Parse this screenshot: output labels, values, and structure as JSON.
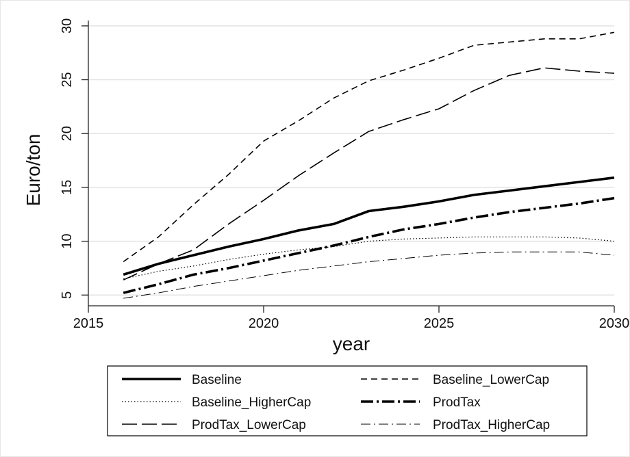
{
  "chart_data": {
    "type": "line",
    "xlabel": "year",
    "ylabel": "Euro/ton",
    "xlim": [
      2015,
      2030
    ],
    "ylim": [
      4,
      30.5
    ],
    "xticks": [
      2015,
      2020,
      2025,
      2030
    ],
    "yticks": [
      5,
      10,
      15,
      20,
      25,
      30
    ],
    "grid": "horizontal",
    "legend_position": "bottom",
    "x": [
      2016,
      2017,
      2018,
      2019,
      2020,
      2021,
      2022,
      2023,
      2024,
      2025,
      2026,
      2027,
      2028,
      2029,
      2030
    ],
    "series": [
      {
        "name": "Baseline",
        "style": "solid-thick",
        "values": [
          6.9,
          7.9,
          8.7,
          9.5,
          10.2,
          11.0,
          11.6,
          12.8,
          13.2,
          13.7,
          14.3,
          14.7,
          15.1,
          15.5,
          15.9
        ]
      },
      {
        "name": "Baseline_LowerCap",
        "style": "dash",
        "values": [
          8.1,
          10.4,
          13.4,
          16.2,
          19.3,
          21.2,
          23.3,
          24.9,
          25.9,
          27.0,
          28.2,
          28.5,
          28.8,
          28.8,
          29.4
        ]
      },
      {
        "name": "Baseline_HigherCap",
        "style": "dot",
        "values": [
          6.5,
          7.2,
          7.7,
          8.3,
          8.8,
          9.2,
          9.5,
          10.0,
          10.2,
          10.3,
          10.4,
          10.4,
          10.4,
          10.3,
          10.0
        ]
      },
      {
        "name": "ProdTax",
        "style": "dashdot-thick",
        "values": [
          5.2,
          6.0,
          6.9,
          7.5,
          8.2,
          8.9,
          9.6,
          10.4,
          11.1,
          11.6,
          12.2,
          12.7,
          13.1,
          13.5,
          14.0
        ]
      },
      {
        "name": "ProdTax_LowerCap",
        "style": "longdash",
        "values": [
          6.4,
          7.9,
          9.2,
          11.6,
          13.8,
          16.1,
          18.2,
          20.2,
          21.3,
          22.3,
          24.0,
          25.4,
          26.1,
          25.8,
          25.6
        ]
      },
      {
        "name": "ProdTax_HigherCap",
        "style": "dashdot-thin",
        "values": [
          4.7,
          5.2,
          5.8,
          6.3,
          6.8,
          7.3,
          7.7,
          8.1,
          8.4,
          8.7,
          8.9,
          9.0,
          9.0,
          9.0,
          8.7
        ]
      }
    ]
  }
}
